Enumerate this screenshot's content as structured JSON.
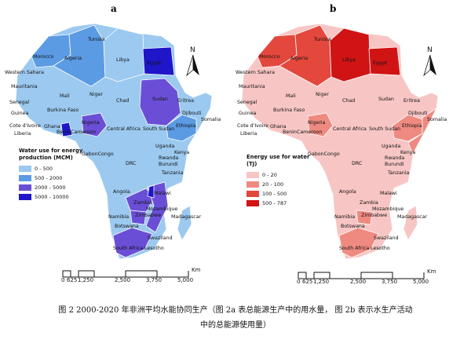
{
  "panels": {
    "a": {
      "letter": "a",
      "legend_title_line1": "Water use for energy",
      "legend_title_line2": "production (MCM)",
      "legend": [
        {
          "label": "0 - 500",
          "color": "#9cc9ef"
        },
        {
          "label": "500 - 2000",
          "color": "#5b9be4"
        },
        {
          "label": "2000 - 5000",
          "color": "#6a4fd6"
        },
        {
          "label": "5000 - 10000",
          "color": "#1e16c8"
        }
      ]
    },
    "b": {
      "letter": "b",
      "legend_title_line1": "Energy use for water",
      "legend_title_line2": "(TJ)",
      "legend": [
        {
          "label": "0 - 20",
          "color": "#f7c6c4"
        },
        {
          "label": "20 - 100",
          "color": "#ef8a80"
        },
        {
          "label": "100 - 500",
          "color": "#e4473c"
        },
        {
          "label": "500 - 787",
          "color": "#d01414"
        }
      ]
    }
  },
  "north_label": "N",
  "scale": {
    "ticks": [
      "0",
      "625",
      "1,250",
      "2,500",
      "3,750",
      "5,000"
    ],
    "unit": "Km"
  },
  "country_labels": {
    "tunisia": "Tunisia",
    "morocco": "Morocco",
    "algeria": "Algeria",
    "libya": "Libya",
    "egypt": "Egypt",
    "western_sahara": "Western Sahara",
    "mauritania": "Mauritania",
    "mali": "Mali",
    "niger": "Niger",
    "chad": "Chad",
    "sudan": "Sudan",
    "eritrea": "Eritrea",
    "djibouti": "Djibouti",
    "senegal": "Senegal",
    "burkina_faso": "Burkina Faso",
    "guinea": "Guinea",
    "nigeria": "Nigeria",
    "ethiopia": "Ethiopia",
    "somalia": "Somalia",
    "cote_divoire": "Cote d'Ivoire",
    "ghana": "Ghana",
    "liberia": "Liberia",
    "benin_cameroon": "BeninCameroon",
    "central_africa": "Central Africa",
    "south_sudan": "South Sudan",
    "gabon_congo": "GabonCongo",
    "uganda": "Uganda",
    "kenya": "Kenya",
    "drc": "DRC",
    "rwanda": "Rwanda",
    "burundi": "Burundi",
    "tanzania": "Tanzania",
    "angola": "Angola",
    "malawi": "Malawi",
    "zambia": "Zambia",
    "namibia": "Namibia",
    "zimbabwe": "Zimbabwe",
    "mozambique": "Mozambique",
    "madagascar": "Madagascar",
    "botswana": "Botswana",
    "swaziland": "Swaziland",
    "south_africa": "South Africa",
    "lesotho": "Lesotho"
  },
  "caption": {
    "line1": "图 2 2000-2020 年非洲平均水能协同生产（图 2a 表总能源生产中的用水量， 图 2b 表示水生产活动",
    "line2": "中的总能源使用量）"
  }
}
